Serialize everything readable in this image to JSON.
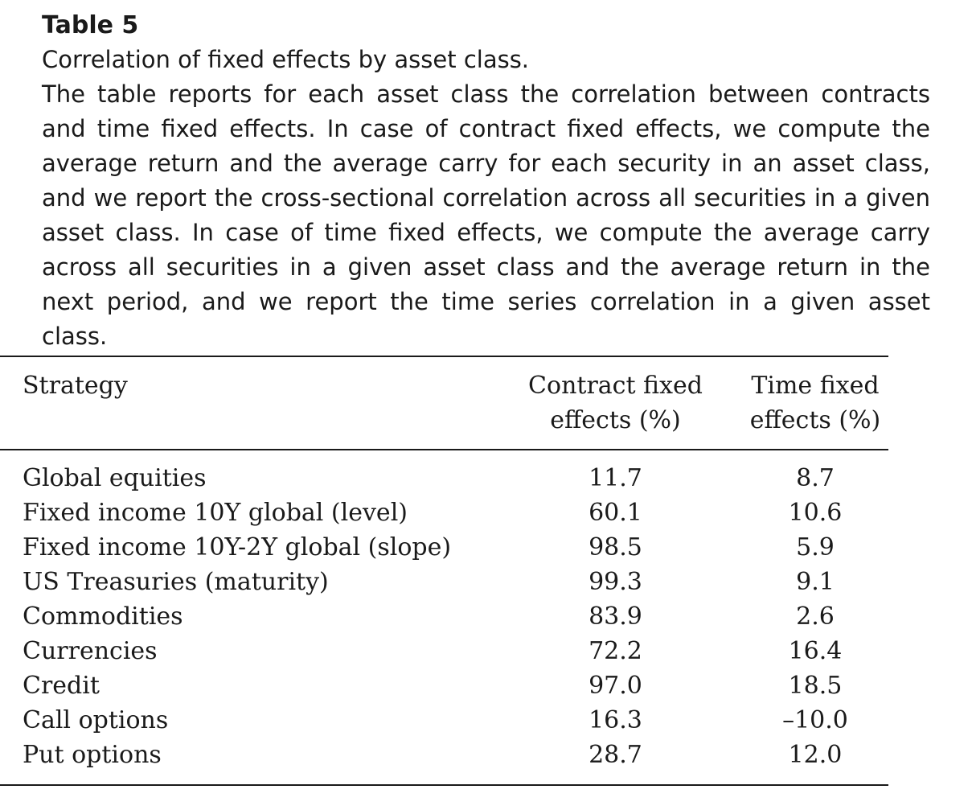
{
  "table": {
    "label": "Table 5",
    "title": "Correlation of fixed effects by asset class.",
    "description": "The table reports for each asset class the correlation between contracts and time fixed effects. In case of contract fixed effects, we compute the average return and the average carry for each security in an asset class, and we report the cross-sectional correlation across all securities in a given asset class. In case of time fixed effects, we compute the average carry across all securities in a given asset class and the average return in the next period, and we report the time series correlation in a given asset class.",
    "columns": {
      "strategy": "Strategy",
      "contract_line1": "Contract fixed",
      "contract_line2": "effects (%)",
      "time_line1": "Time fixed",
      "time_line2": "effects (%)"
    },
    "rows": [
      {
        "strategy": "Global equities",
        "contract": "11.7",
        "time": "8.7"
      },
      {
        "strategy": "Fixed income 10Y global (level)",
        "contract": "60.1",
        "time": "10.6"
      },
      {
        "strategy": "Fixed income 10Y-2Y global (slope)",
        "contract": "98.5",
        "time": "5.9"
      },
      {
        "strategy": "US Treasuries (maturity)",
        "contract": "99.3",
        "time": "9.1"
      },
      {
        "strategy": "Commodities",
        "contract": "83.9",
        "time": "2.6"
      },
      {
        "strategy": "Currencies",
        "contract": "72.2",
        "time": "16.4"
      },
      {
        "strategy": "Credit",
        "contract": "97.0",
        "time": "18.5"
      },
      {
        "strategy": "Call options",
        "contract": "16.3",
        "time": "–10.0"
      },
      {
        "strategy": "Put options",
        "contract": "28.7",
        "time": "12.0"
      }
    ]
  }
}
